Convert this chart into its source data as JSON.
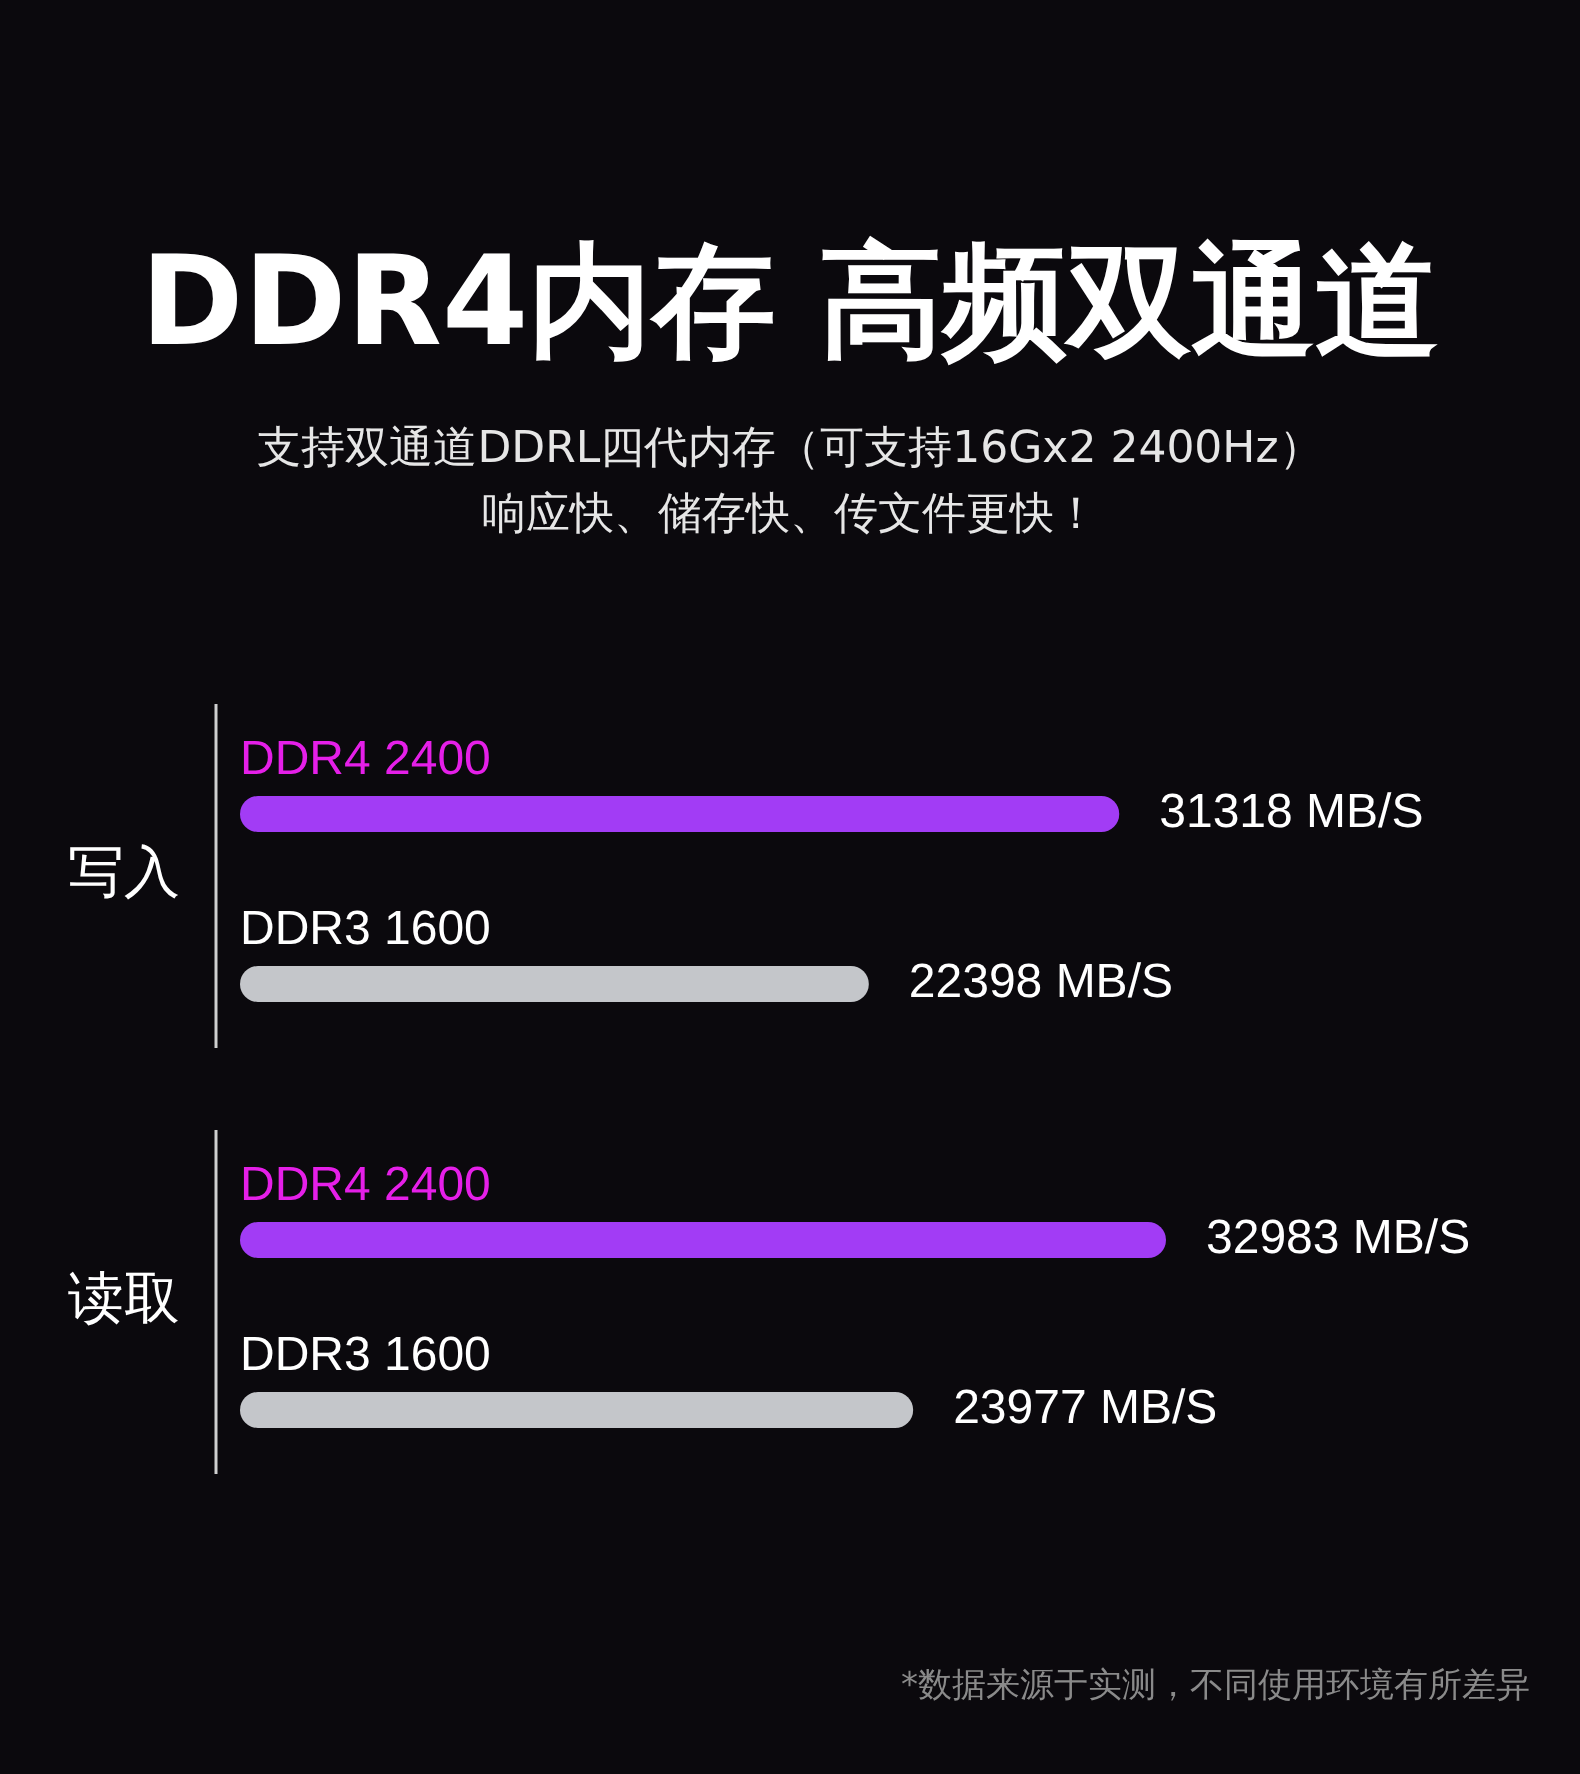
{
  "chart_data": {
    "type": "bar",
    "orientation": "horizontal",
    "title": "DDR4内存 高频双通道",
    "subtitle": "支持双通道DDRL四代内存（可支持16Gx2 2400Hz）响应快、储存快、传文件更快！",
    "categories": [
      "写入",
      "读取"
    ],
    "series": [
      {
        "name": "DDR4 2400",
        "color": "#a23cf5",
        "values": [
          31318,
          32983
        ],
        "value_labels": [
          "31318 MB/S",
          "32983 MB/S"
        ]
      },
      {
        "name": "DDR3 1600",
        "color": "#c4c6ca",
        "values": [
          22398,
          23977
        ],
        "value_labels": [
          "22398 MB/S",
          "23977 MB/S"
        ]
      }
    ],
    "legend": false,
    "annotations": [
      "*数据来源于实测，不同使用环境有所差异"
    ]
  }
}
